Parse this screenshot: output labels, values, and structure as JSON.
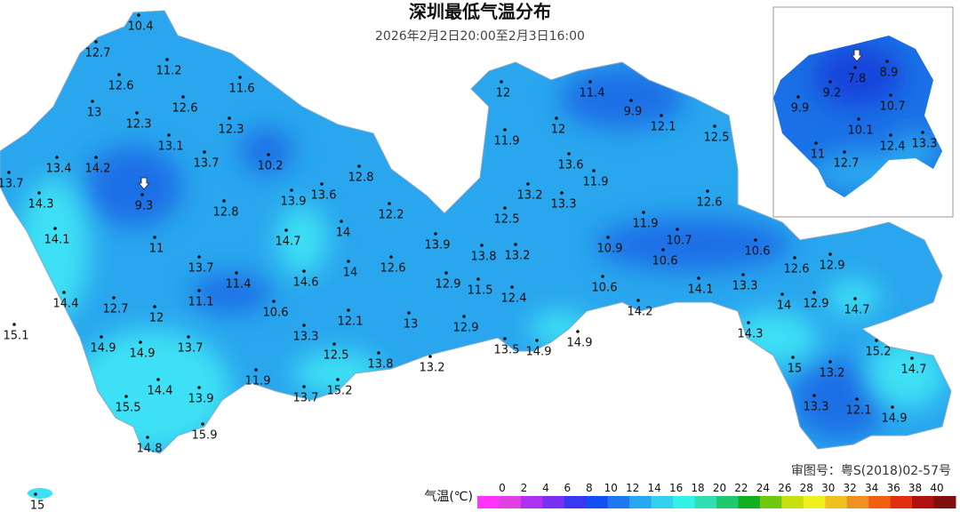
{
  "header": {
    "title": "深圳最低气温分布",
    "subtitle": "2026年2月2日20:00至2月3日16:00"
  },
  "approval": "审图号：粤S(2018)02-57号",
  "stations": [
    10.4,
    12.7,
    11.2,
    12.6,
    11.6,
    13,
    12.6,
    12.3,
    12.3,
    13.1,
    13.7,
    10.2,
    13.4,
    14.2,
    12.8,
    13.7,
    13.9,
    13.6,
    9.3,
    14.3,
    12.8,
    12.2,
    14.1,
    14.7,
    14,
    11,
    13.9,
    13.8,
    13.2,
    12.5,
    14,
    12.6,
    13.7,
    14.6,
    11.4,
    12.9,
    11.5,
    12.4,
    11.1,
    10.6,
    12.7,
    12,
    14.4,
    12.1,
    13,
    12.9,
    13.3,
    15.1,
    14.9,
    14.9,
    13.7,
    13.5,
    14.9,
    14.9,
    12.5,
    13.8,
    13.2,
    11.9,
    15.2,
    13.7,
    14.4,
    13.9,
    15.5,
    15.9,
    14.8,
    15,
    12,
    11.4,
    9.9,
    12,
    12.1,
    12.5,
    11.9,
    13.6,
    11.9,
    13.2,
    13.3,
    12.6,
    11.9,
    10.9,
    10.7,
    10.6,
    10.6,
    12.6,
    12.9,
    10.6,
    14.1,
    13.3,
    14,
    12.9,
    14.7,
    14.2,
    14.3,
    15,
    13.2,
    15.2,
    14.7,
    13.3,
    12.1,
    14.9
  ],
  "inset_stations": [
    7.8,
    8.9,
    9.2,
    10.7,
    9.9,
    10.1,
    11,
    12.7,
    12.4,
    13.3
  ],
  "legend": {
    "label": "气温(℃)",
    "ticks": [
      0,
      2,
      4,
      6,
      8,
      10,
      12,
      14,
      16,
      18,
      20,
      22,
      24,
      26,
      28,
      30,
      32,
      34,
      36,
      38,
      40
    ],
    "colors": [
      "#ff33ff",
      "#e040e0",
      "#b030f0",
      "#7a30f0",
      "#3838f0",
      "#1050f0",
      "#1e78f0",
      "#28a8f0",
      "#33d0f0",
      "#33f0e8",
      "#30e0b0",
      "#20c870",
      "#10b020",
      "#70c810",
      "#c8e010",
      "#f0f020",
      "#f0c020",
      "#f09020",
      "#f06010",
      "#e03010",
      "#b01010",
      "#801010"
    ]
  }
}
